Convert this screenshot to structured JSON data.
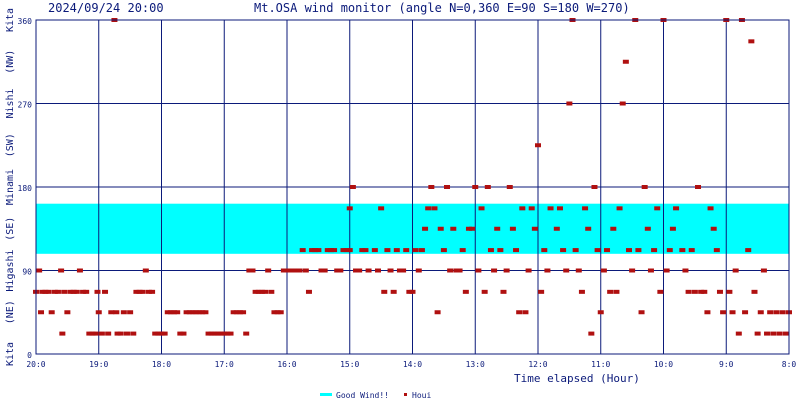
{
  "chart_data": {
    "type": "scatter",
    "header_datetime": "2024/09/24 20:00",
    "title": "Mt.OSA wind monitor (angle N=0,360 E=90 S=180 W=270)",
    "xlabel": "Time elapsed (Hour)",
    "x_ticks": [
      "20:0",
      "19:0",
      "18:0",
      "17:0",
      "16:0",
      "15:0",
      "14:0",
      "13:0",
      "12:0",
      "11:0",
      "10:0",
      "9:0",
      "8:0"
    ],
    "x_tick_hours_elapsed": [
      0,
      1,
      2,
      3,
      4,
      5,
      6,
      7,
      8,
      9,
      10,
      11,
      12
    ],
    "xlim": [
      0,
      12
    ],
    "y_ticks": [
      "0",
      "90",
      "180",
      "270",
      "360"
    ],
    "y_tick_values": [
      0,
      90,
      180,
      270,
      360
    ],
    "ylim": [
      0,
      360
    ],
    "y_direction_labels": [
      "Kita",
      "(NE)",
      "Higashi",
      "(SE)",
      "Minami",
      "(SW)",
      "Nishi",
      "(NW)",
      "Kita"
    ],
    "grid": true,
    "legend_position": "bottom-center",
    "good_wind_band": {
      "label": "Good Wind!!",
      "y_from": 108,
      "y_to": 162,
      "color": "#00ffff"
    },
    "series": [
      {
        "name": "Houi",
        "color": "#b01010",
        "points": [
          [
            0.0,
            67
          ],
          [
            0.05,
            90
          ],
          [
            0.08,
            45
          ],
          [
            0.1,
            67
          ],
          [
            0.15,
            67
          ],
          [
            0.2,
            67
          ],
          [
            0.25,
            45
          ],
          [
            0.3,
            67
          ],
          [
            0.35,
            67
          ],
          [
            0.4,
            90
          ],
          [
            0.42,
            22
          ],
          [
            0.45,
            67
          ],
          [
            0.5,
            45
          ],
          [
            0.55,
            67
          ],
          [
            0.6,
            67
          ],
          [
            0.65,
            67
          ],
          [
            0.7,
            90
          ],
          [
            0.75,
            67
          ],
          [
            0.8,
            67
          ],
          [
            0.85,
            22
          ],
          [
            0.9,
            22
          ],
          [
            0.95,
            22
          ],
          [
            0.98,
            67
          ],
          [
            1.0,
            45
          ],
          [
            1.05,
            22
          ],
          [
            1.1,
            67
          ],
          [
            1.15,
            22
          ],
          [
            1.2,
            45
          ],
          [
            1.25,
            360
          ],
          [
            1.28,
            45
          ],
          [
            1.3,
            22
          ],
          [
            1.35,
            22
          ],
          [
            1.4,
            45
          ],
          [
            1.45,
            22
          ],
          [
            1.5,
            45
          ],
          [
            1.55,
            22
          ],
          [
            1.6,
            67
          ],
          [
            1.65,
            67
          ],
          [
            1.7,
            67
          ],
          [
            1.75,
            90
          ],
          [
            1.8,
            67
          ],
          [
            1.85,
            67
          ],
          [
            1.9,
            22
          ],
          [
            1.95,
            22
          ],
          [
            2.0,
            22
          ],
          [
            2.05,
            22
          ],
          [
            2.1,
            45
          ],
          [
            2.15,
            45
          ],
          [
            2.2,
            45
          ],
          [
            2.25,
            45
          ],
          [
            2.3,
            22
          ],
          [
            2.35,
            22
          ],
          [
            2.4,
            45
          ],
          [
            2.45,
            45
          ],
          [
            2.5,
            45
          ],
          [
            2.55,
            45
          ],
          [
            2.6,
            45
          ],
          [
            2.65,
            45
          ],
          [
            2.7,
            45
          ],
          [
            2.75,
            22
          ],
          [
            2.8,
            22
          ],
          [
            2.85,
            22
          ],
          [
            2.9,
            22
          ],
          [
            2.95,
            22
          ],
          [
            3.0,
            22
          ],
          [
            3.05,
            22
          ],
          [
            3.1,
            22
          ],
          [
            3.15,
            45
          ],
          [
            3.2,
            45
          ],
          [
            3.25,
            45
          ],
          [
            3.3,
            45
          ],
          [
            3.35,
            22
          ],
          [
            3.4,
            90
          ],
          [
            3.45,
            90
          ],
          [
            3.5,
            67
          ],
          [
            3.55,
            67
          ],
          [
            3.6,
            67
          ],
          [
            3.65,
            67
          ],
          [
            3.7,
            90
          ],
          [
            3.75,
            67
          ],
          [
            3.8,
            45
          ],
          [
            3.85,
            45
          ],
          [
            3.9,
            45
          ],
          [
            3.95,
            90
          ],
          [
            4.0,
            90
          ],
          [
            4.05,
            90
          ],
          [
            4.1,
            90
          ],
          [
            4.15,
            90
          ],
          [
            4.2,
            90
          ],
          [
            4.25,
            112
          ],
          [
            4.3,
            90
          ],
          [
            4.35,
            67
          ],
          [
            4.4,
            112
          ],
          [
            4.45,
            112
          ],
          [
            4.5,
            112
          ],
          [
            4.55,
            90
          ],
          [
            4.6,
            90
          ],
          [
            4.65,
            112
          ],
          [
            4.7,
            112
          ],
          [
            4.75,
            112
          ],
          [
            4.8,
            90
          ],
          [
            4.85,
            90
          ],
          [
            4.9,
            112
          ],
          [
            4.95,
            112
          ],
          [
            5.0,
            112
          ],
          [
            5.0,
            157
          ],
          [
            5.05,
            180
          ],
          [
            5.1,
            90
          ],
          [
            5.15,
            90
          ],
          [
            5.2,
            112
          ],
          [
            5.25,
            112
          ],
          [
            5.3,
            90
          ],
          [
            5.4,
            112
          ],
          [
            5.45,
            90
          ],
          [
            5.5,
            157
          ],
          [
            5.55,
            67
          ],
          [
            5.6,
            112
          ],
          [
            5.65,
            90
          ],
          [
            5.7,
            67
          ],
          [
            5.75,
            112
          ],
          [
            5.8,
            90
          ],
          [
            5.85,
            90
          ],
          [
            5.9,
            112
          ],
          [
            5.95,
            67
          ],
          [
            6.0,
            67
          ],
          [
            6.05,
            112
          ],
          [
            6.1,
            90
          ],
          [
            6.15,
            112
          ],
          [
            6.2,
            135
          ],
          [
            6.25,
            157
          ],
          [
            6.3,
            180
          ],
          [
            6.35,
            157
          ],
          [
            6.4,
            45
          ],
          [
            6.45,
            135
          ],
          [
            6.5,
            112
          ],
          [
            6.55,
            180
          ],
          [
            6.6,
            90
          ],
          [
            6.65,
            135
          ],
          [
            6.7,
            90
          ],
          [
            6.75,
            90
          ],
          [
            6.8,
            112
          ],
          [
            6.85,
            67
          ],
          [
            6.9,
            135
          ],
          [
            6.95,
            135
          ],
          [
            7.0,
            180
          ],
          [
            7.05,
            90
          ],
          [
            7.1,
            157
          ],
          [
            7.15,
            67
          ],
          [
            7.2,
            180
          ],
          [
            7.25,
            112
          ],
          [
            7.3,
            90
          ],
          [
            7.35,
            135
          ],
          [
            7.4,
            112
          ],
          [
            7.45,
            67
          ],
          [
            7.5,
            90
          ],
          [
            7.55,
            180
          ],
          [
            7.6,
            135
          ],
          [
            7.65,
            112
          ],
          [
            7.7,
            45
          ],
          [
            7.75,
            157
          ],
          [
            7.8,
            45
          ],
          [
            7.85,
            90
          ],
          [
            7.9,
            157
          ],
          [
            7.95,
            135
          ],
          [
            8.0,
            225
          ],
          [
            8.05,
            67
          ],
          [
            8.1,
            112
          ],
          [
            8.15,
            90
          ],
          [
            8.2,
            157
          ],
          [
            8.3,
            135
          ],
          [
            8.35,
            157
          ],
          [
            8.4,
            112
          ],
          [
            8.45,
            90
          ],
          [
            8.5,
            270
          ],
          [
            8.55,
            360
          ],
          [
            8.6,
            112
          ],
          [
            8.65,
            90
          ],
          [
            8.7,
            67
          ],
          [
            8.75,
            157
          ],
          [
            8.8,
            135
          ],
          [
            8.85,
            22
          ],
          [
            8.9,
            180
          ],
          [
            8.95,
            112
          ],
          [
            9.0,
            45
          ],
          [
            9.05,
            90
          ],
          [
            9.1,
            112
          ],
          [
            9.15,
            67
          ],
          [
            9.2,
            135
          ],
          [
            9.25,
            67
          ],
          [
            9.3,
            157
          ],
          [
            9.35,
            270
          ],
          [
            9.4,
            315
          ],
          [
            9.45,
            112
          ],
          [
            9.5,
            90
          ],
          [
            9.55,
            360
          ],
          [
            9.6,
            112
          ],
          [
            9.65,
            45
          ],
          [
            9.7,
            180
          ],
          [
            9.75,
            135
          ],
          [
            9.8,
            90
          ],
          [
            9.85,
            112
          ],
          [
            9.9,
            157
          ],
          [
            9.95,
            67
          ],
          [
            10.0,
            360
          ],
          [
            10.05,
            90
          ],
          [
            10.1,
            112
          ],
          [
            10.15,
            135
          ],
          [
            10.2,
            157
          ],
          [
            10.3,
            112
          ],
          [
            10.35,
            90
          ],
          [
            10.4,
            67
          ],
          [
            10.45,
            112
          ],
          [
            10.5,
            67
          ],
          [
            10.55,
            180
          ],
          [
            10.6,
            67
          ],
          [
            10.65,
            67
          ],
          [
            10.7,
            45
          ],
          [
            10.75,
            157
          ],
          [
            10.8,
            135
          ],
          [
            10.85,
            112
          ],
          [
            10.9,
            67
          ],
          [
            10.95,
            45
          ],
          [
            11.0,
            360
          ],
          [
            11.05,
            67
          ],
          [
            11.1,
            45
          ],
          [
            11.15,
            90
          ],
          [
            11.2,
            22
          ],
          [
            11.25,
            360
          ],
          [
            11.3,
            45
          ],
          [
            11.35,
            112
          ],
          [
            11.4,
            337
          ],
          [
            11.45,
            67
          ],
          [
            11.5,
            22
          ],
          [
            11.55,
            45
          ],
          [
            11.6,
            90
          ],
          [
            11.65,
            22
          ],
          [
            11.7,
            45
          ],
          [
            11.75,
            22
          ],
          [
            11.8,
            45
          ],
          [
            11.85,
            22
          ],
          [
            11.9,
            45
          ],
          [
            11.95,
            22
          ],
          [
            12.0,
            45
          ]
        ]
      }
    ]
  },
  "legend": {
    "good_wind": "Good Wind!!",
    "houi": "Houi"
  }
}
